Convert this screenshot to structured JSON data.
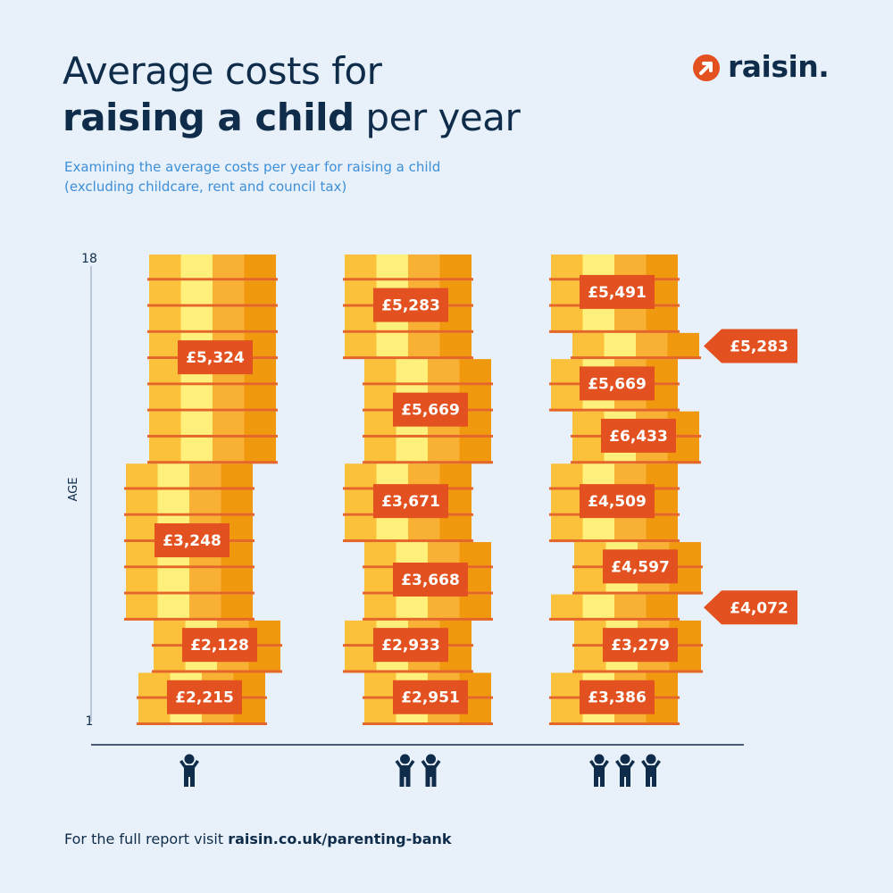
{
  "header": {
    "title_line1": "Average costs for",
    "title_bold": "raising a child",
    "title_rest": " per year",
    "subtitle_line1": "Examining the average costs per year for raising a child",
    "subtitle_line2": "(excluding childcare, rent and council tax)"
  },
  "logo": {
    "text": "raisin."
  },
  "footer": {
    "prefix": "For the full report visit ",
    "link": "raisin.co.uk/parenting-bank"
  },
  "colors": {
    "navy": "#0f2d4a",
    "badge": "#e2511f",
    "coin_light": "#fbc13a",
    "coin_yellow": "#fef07a",
    "coin_mid": "#f8b035",
    "coin_dark": "#f0980e",
    "coin_stripe": "#e5662a"
  },
  "chart_data": {
    "type": "bar",
    "ylabel": "AGE",
    "yticks": [
      "1",
      "18"
    ],
    "ylim": [
      1,
      18
    ],
    "categories": [
      "1 child",
      "2 children",
      "3 children"
    ],
    "icons": [
      "person-icon",
      "person-icon",
      "person-icon"
    ],
    "series": [
      {
        "category": "1 child",
        "segments": [
          {
            "value": "£2,215",
            "age_from": 1,
            "age_to": 2
          },
          {
            "value": "£2,128",
            "age_from": 3,
            "age_to": 4
          },
          {
            "value": "£3,248",
            "age_from": 5,
            "age_to": 10
          },
          {
            "value": "£5,324",
            "age_from": 11,
            "age_to": 18
          }
        ]
      },
      {
        "category": "2 children",
        "segments": [
          {
            "value": "£2,951",
            "age_from": 1,
            "age_to": 2
          },
          {
            "value": "£2,933",
            "age_from": 3,
            "age_to": 4
          },
          {
            "value": "£3,668",
            "age_from": 5,
            "age_to": 7
          },
          {
            "value": "£3,671",
            "age_from": 8,
            "age_to": 10
          },
          {
            "value": "£5,669",
            "age_from": 11,
            "age_to": 14
          },
          {
            "value": "£5,283",
            "age_from": 15,
            "age_to": 18
          }
        ]
      },
      {
        "category": "3 children",
        "segments": [
          {
            "value": "£3,386",
            "age_from": 1,
            "age_to": 2
          },
          {
            "value": "£3,279",
            "age_from": 3,
            "age_to": 4
          },
          {
            "value": "£4,072",
            "age_from": 5,
            "age_to": 5,
            "callout": true
          },
          {
            "value": "£4,597",
            "age_from": 6,
            "age_to": 7
          },
          {
            "value": "£4,509",
            "age_from": 8,
            "age_to": 10
          },
          {
            "value": "£6,433",
            "age_from": 11,
            "age_to": 12
          },
          {
            "value": "£5,669",
            "age_from": 13,
            "age_to": 14
          },
          {
            "value": "£5,283",
            "age_from": 15,
            "age_to": 15,
            "callout": true
          },
          {
            "value": "£5,491",
            "age_from": 16,
            "age_to": 18
          }
        ]
      }
    ]
  }
}
